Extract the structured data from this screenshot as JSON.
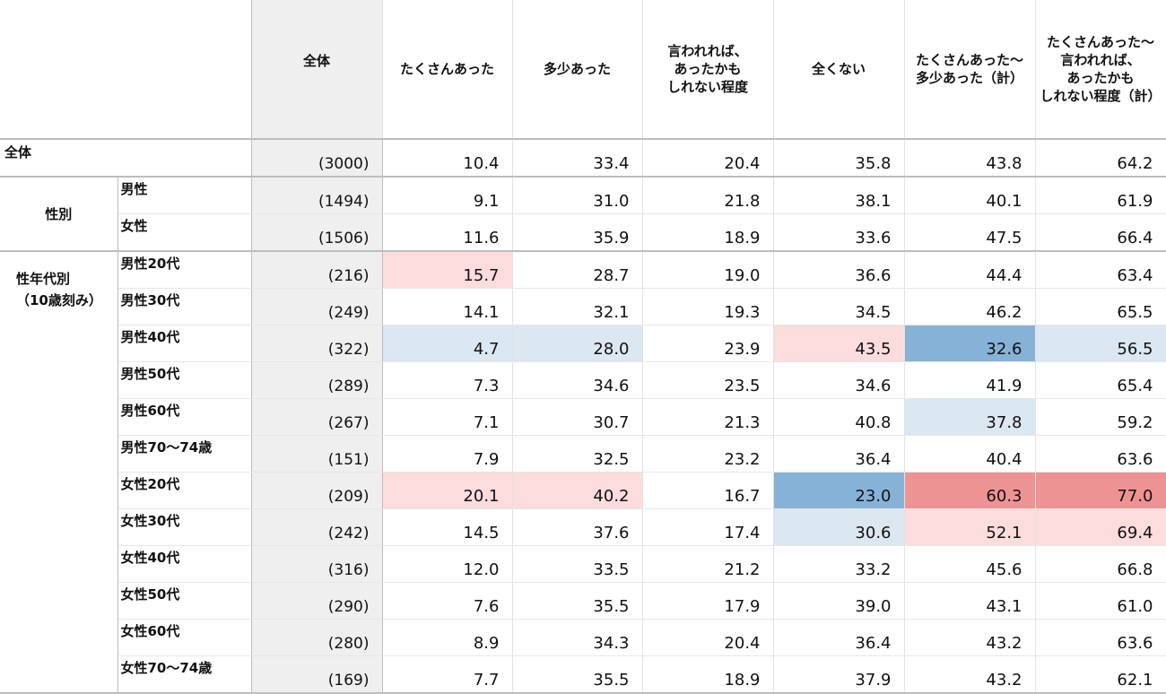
{
  "columns": [
    "全体",
    "たくさんあった",
    "多少あった",
    "言われれば、\nあったかも\nしれない程度",
    "全くない",
    "たくさんあった～\n多少あった（計）",
    "たくさんあった～\n言われれば、\nあったかも\nしれない程度（計）"
  ],
  "colors": {
    "light_red": "#fcdcdc",
    "mid_red": "#f5c0c0",
    "strong_red": "#ee9393",
    "light_blue": "#dbe7f1",
    "strong_blue": "#86b2d8"
  },
  "rows": [
    {
      "group": "全体",
      "label": "",
      "n": "(3000)",
      "values": [
        "10.4",
        "33.4",
        "20.4",
        "35.8",
        "43.8",
        "64.2"
      ],
      "highlight": [
        null,
        null,
        null,
        null,
        null,
        null
      ]
    },
    {
      "group": "性別",
      "label": "男性",
      "n": "(1494)",
      "values": [
        "9.1",
        "31.0",
        "21.8",
        "38.1",
        "40.1",
        "61.9"
      ],
      "highlight": [
        null,
        null,
        null,
        null,
        null,
        null
      ]
    },
    {
      "group": "性別",
      "label": "女性",
      "n": "(1506)",
      "values": [
        "11.6",
        "35.9",
        "18.9",
        "33.6",
        "47.5",
        "66.4"
      ],
      "highlight": [
        null,
        null,
        null,
        null,
        null,
        null
      ]
    },
    {
      "group": "性年代別\n（10歳刻み）",
      "label": "男性20代",
      "n": "(216)",
      "values": [
        "15.7",
        "28.7",
        "19.0",
        "36.6",
        "44.4",
        "63.4"
      ],
      "highlight": [
        "light_red",
        null,
        null,
        null,
        null,
        null
      ]
    },
    {
      "group": "性年代別\n（10歳刻み）",
      "label": "男性30代",
      "n": "(249)",
      "values": [
        "14.1",
        "32.1",
        "19.3",
        "34.5",
        "46.2",
        "65.5"
      ],
      "highlight": [
        null,
        null,
        null,
        null,
        null,
        null
      ]
    },
    {
      "group": "性年代別\n（10歳刻み）",
      "label": "男性40代",
      "n": "(322)",
      "values": [
        "4.7",
        "28.0",
        "23.9",
        "43.5",
        "32.6",
        "56.5"
      ],
      "highlight": [
        "light_blue",
        "light_blue",
        null,
        "light_red",
        "strong_blue",
        "light_blue"
      ]
    },
    {
      "group": "性年代別\n（10歳刻み）",
      "label": "男性50代",
      "n": "(289)",
      "values": [
        "7.3",
        "34.6",
        "23.5",
        "34.6",
        "41.9",
        "65.4"
      ],
      "highlight": [
        null,
        null,
        null,
        null,
        null,
        null
      ]
    },
    {
      "group": "性年代別\n（10歳刻み）",
      "label": "男性60代",
      "n": "(267)",
      "values": [
        "7.1",
        "30.7",
        "21.3",
        "40.8",
        "37.8",
        "59.2"
      ],
      "highlight": [
        null,
        null,
        null,
        null,
        "light_blue",
        null
      ]
    },
    {
      "group": "性年代別\n（10歳刻み）",
      "label": "男性70～74歳",
      "n": "(151)",
      "values": [
        "7.9",
        "32.5",
        "23.2",
        "36.4",
        "40.4",
        "63.6"
      ],
      "highlight": [
        null,
        null,
        null,
        null,
        null,
        null
      ]
    },
    {
      "group": "性年代別\n（10歳刻み）",
      "label": "女性20代",
      "n": "(209)",
      "values": [
        "20.1",
        "40.2",
        "16.7",
        "23.0",
        "60.3",
        "77.0"
      ],
      "highlight": [
        "light_red",
        "light_red",
        null,
        "strong_blue",
        "strong_red",
        "strong_red"
      ]
    },
    {
      "group": "性年代別\n（10歳刻み）",
      "label": "女性30代",
      "n": "(242)",
      "values": [
        "14.5",
        "37.6",
        "17.4",
        "30.6",
        "52.1",
        "69.4"
      ],
      "highlight": [
        null,
        null,
        null,
        "light_blue",
        "light_red",
        "light_red"
      ]
    },
    {
      "group": "性年代別\n（10歳刻み）",
      "label": "女性40代",
      "n": "(316)",
      "values": [
        "12.0",
        "33.5",
        "21.2",
        "33.2",
        "45.6",
        "66.8"
      ],
      "highlight": [
        null,
        null,
        null,
        null,
        null,
        null
      ]
    },
    {
      "group": "性年代別\n（10歳刻み）",
      "label": "女性50代",
      "n": "(290)",
      "values": [
        "7.6",
        "35.5",
        "17.9",
        "39.0",
        "43.1",
        "61.0"
      ],
      "highlight": [
        null,
        null,
        null,
        null,
        null,
        null
      ]
    },
    {
      "group": "性年代別\n（10歳刻み）",
      "label": "女性60代",
      "n": "(280)",
      "values": [
        "8.9",
        "34.3",
        "20.4",
        "36.4",
        "43.2",
        "63.6"
      ],
      "highlight": [
        null,
        null,
        null,
        null,
        null,
        null
      ]
    },
    {
      "group": "性年代別\n（10歳刻み）",
      "label": "女性70～74歳",
      "n": "(169)",
      "values": [
        "7.7",
        "35.5",
        "18.9",
        "37.9",
        "43.2",
        "62.1"
      ],
      "highlight": [
        null,
        null,
        null,
        null,
        null,
        null
      ]
    }
  ]
}
